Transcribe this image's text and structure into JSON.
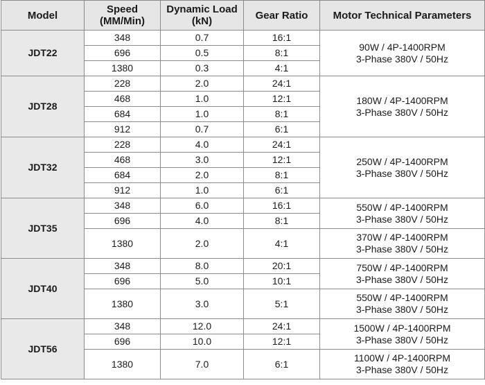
{
  "headers": {
    "model": "Model",
    "speed_line1": "Speed",
    "speed_line2": "(MM/Min)",
    "load_line1": "Dynamic Load",
    "load_line2": "(kN)",
    "ratio": "Gear Ratio",
    "motor": "Motor Technical Parameters"
  },
  "groups": [
    {
      "model": "JDT22",
      "rows": [
        {
          "speed": "348",
          "load": "0.7",
          "ratio": "16:1"
        },
        {
          "speed": "696",
          "load": "0.5",
          "ratio": "8:1"
        },
        {
          "speed": "1380",
          "load": "0.3",
          "ratio": "4:1"
        }
      ],
      "motors": [
        {
          "span": 3,
          "line1": "90W / 4P-1400RPM",
          "line2": "3-Phase 380V / 50Hz",
          "small": false
        }
      ]
    },
    {
      "model": "JDT28",
      "rows": [
        {
          "speed": "228",
          "load": "2.0",
          "ratio": "24:1"
        },
        {
          "speed": "468",
          "load": "1.0",
          "ratio": "12:1"
        },
        {
          "speed": "684",
          "load": "1.0",
          "ratio": "8:1"
        },
        {
          "speed": "912",
          "load": "0.7",
          "ratio": "6:1"
        }
      ],
      "motors": [
        {
          "span": 4,
          "line1": "180W / 4P-1400RPM",
          "line2": "3-Phase 380V / 50Hz",
          "small": false
        }
      ]
    },
    {
      "model": "JDT32",
      "rows": [
        {
          "speed": "228",
          "load": "4.0",
          "ratio": "24:1"
        },
        {
          "speed": "468",
          "load": "3.0",
          "ratio": "12:1"
        },
        {
          "speed": "684",
          "load": "2.0",
          "ratio": "8:1"
        },
        {
          "speed": "912",
          "load": "1.0",
          "ratio": "6:1"
        }
      ],
      "motors": [
        {
          "span": 4,
          "line1": "250W / 4P-1400RPM",
          "line2": "3-Phase 380V / 50Hz",
          "small": false
        }
      ]
    },
    {
      "model": "JDT35",
      "rows": [
        {
          "speed": "348",
          "load": "6.0",
          "ratio": "16:1"
        },
        {
          "speed": "696",
          "load": "4.0",
          "ratio": "8:1"
        },
        {
          "speed": "1380",
          "load": "2.0",
          "ratio": "4:1",
          "tall": true
        }
      ],
      "motors": [
        {
          "span": 2,
          "line1": "550W / 4P-1400RPM",
          "line2": "3-Phase 380V / 50Hz",
          "small": false
        },
        {
          "span": 1,
          "line1": "370W / 4P-1400RPM",
          "line2": "3-Phase 380V / 50Hz",
          "small": true
        }
      ]
    },
    {
      "model": "JDT40",
      "rows": [
        {
          "speed": "348",
          "load": "8.0",
          "ratio": "20:1"
        },
        {
          "speed": "696",
          "load": "5.0",
          "ratio": "10:1"
        },
        {
          "speed": "1380",
          "load": "3.0",
          "ratio": "5:1",
          "tall": true
        }
      ],
      "motors": [
        {
          "span": 2,
          "line1": "750W / 4P-1400RPM",
          "line2": "3-Phase 380V / 50Hz",
          "small": false
        },
        {
          "span": 1,
          "line1": "550W / 4P-1400RPM",
          "line2": "3-Phase 380V / 50Hz",
          "small": true
        }
      ]
    },
    {
      "model": "JDT56",
      "rows": [
        {
          "speed": "348",
          "load": "12.0",
          "ratio": "24:1"
        },
        {
          "speed": "696",
          "load": "10.0",
          "ratio": "12:1"
        },
        {
          "speed": "1380",
          "load": "7.0",
          "ratio": "6:1",
          "tall": true
        }
      ],
      "motors": [
        {
          "span": 2,
          "line1": "1500W / 4P-1400RPM",
          "line2": "3-Phase 380V / 50Hz",
          "small": false
        },
        {
          "span": 1,
          "line1": "1100W / 4P-1400RPM",
          "line2": "3-Phase 380V / 50Hz",
          "small": true
        }
      ]
    }
  ]
}
